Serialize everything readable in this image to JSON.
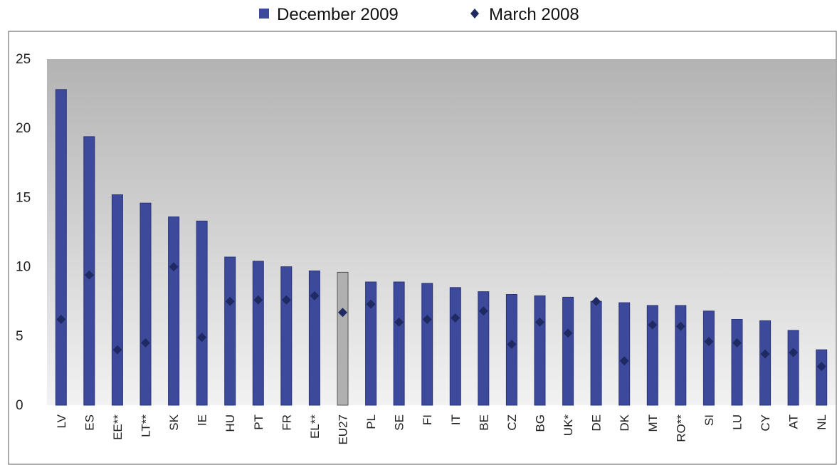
{
  "chart_data": {
    "type": "bar",
    "categories": [
      "LV",
      "ES",
      "EE**",
      "LT**",
      "SK",
      "IE",
      "HU",
      "PT",
      "FR",
      "EL**",
      "EU27",
      "PL",
      "SE",
      "FI",
      "IT",
      "BE",
      "CZ",
      "BG",
      "UK*",
      "DE",
      "DK",
      "MT",
      "RO**",
      "SI",
      "LU",
      "CY",
      "AT",
      "NL"
    ],
    "series": [
      {
        "name": "December 2009",
        "type": "bar",
        "color": "#3d4a9c",
        "highlight_color": "#b0b0b0",
        "highlight_category": "EU27",
        "values": [
          22.8,
          19.4,
          15.2,
          14.6,
          13.6,
          13.3,
          10.7,
          10.4,
          10.0,
          9.7,
          9.6,
          8.9,
          8.9,
          8.8,
          8.5,
          8.2,
          8.0,
          7.9,
          7.8,
          7.5,
          7.4,
          7.2,
          7.2,
          6.8,
          6.2,
          6.1,
          5.4,
          4.0
        ]
      },
      {
        "name": "March 2008",
        "type": "marker",
        "color": "#1f2a63",
        "values": [
          6.2,
          9.4,
          4.0,
          4.5,
          10.0,
          4.9,
          7.5,
          7.6,
          7.6,
          7.9,
          6.7,
          7.3,
          6.0,
          6.2,
          6.3,
          6.8,
          4.4,
          6.0,
          5.2,
          7.5,
          3.2,
          5.8,
          5.7,
          4.6,
          4.5,
          3.7,
          3.8,
          2.8
        ]
      }
    ],
    "yticks": [
      "0",
      "5",
      "10",
      "15",
      "20",
      "25"
    ],
    "ylim": [
      0,
      25
    ],
    "legend_position": "top",
    "grid": false
  }
}
